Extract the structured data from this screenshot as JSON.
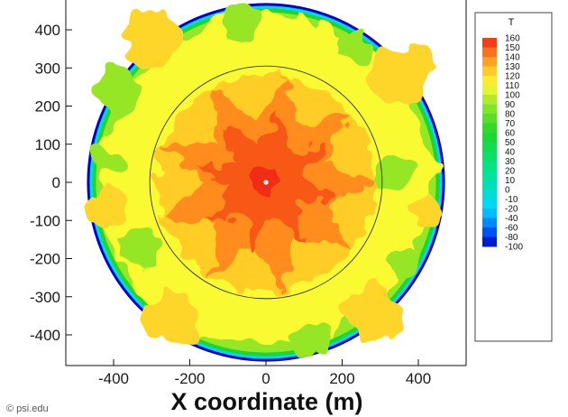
{
  "chart_data": {
    "type": "heatmap",
    "title": "",
    "xlabel": "X coordinate (m)",
    "ylabel": "",
    "xlim": [
      -470,
      470
    ],
    "ylim": [
      -470,
      470
    ],
    "x_ticks": [
      -400,
      -200,
      0,
      200,
      400
    ],
    "y_ticks": [
      400,
      300,
      200,
      100,
      0,
      -100,
      -200,
      -300,
      -400
    ],
    "colorbar": {
      "title": "T",
      "range": [
        -100,
        160
      ],
      "levels": [
        160,
        150,
        140,
        130,
        120,
        110,
        100,
        90,
        80,
        70,
        60,
        50,
        40,
        30,
        20,
        10,
        0,
        -10,
        -20,
        -40,
        -60,
        -80,
        -100
      ],
      "placement": "right"
    },
    "domain_radius": 470,
    "inner_circle_radius": 305,
    "regions": [
      {
        "name": "center",
        "value": 150
      },
      {
        "name": "inner-ring",
        "value": 135
      },
      {
        "name": "outer-annulus",
        "value": 110
      },
      {
        "name": "wall",
        "value": -100
      }
    ],
    "grid": false
  },
  "credit": "© psi.edu"
}
